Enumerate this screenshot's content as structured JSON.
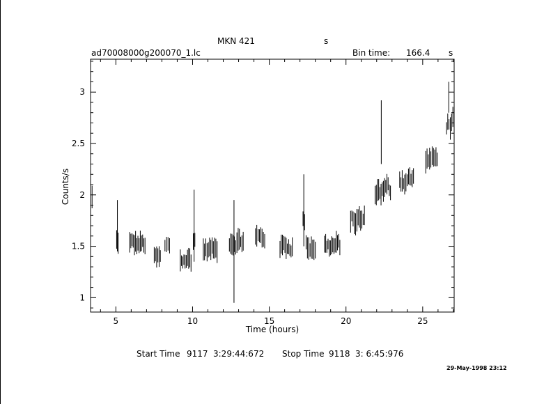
{
  "header": {
    "object": "MKN 421",
    "mid_label": "s",
    "filename": "ad70008000g200070_1.lc",
    "bin_label": "Bin time:",
    "bin_value": "166.4",
    "bin_unit": "s"
  },
  "footer": {
    "start_label": "Start Time",
    "start_day": "9117",
    "start_time": "3:29:44:672",
    "stop_label": "Stop Time",
    "stop_day": "9118",
    "stop_time": "3: 6:45:976",
    "stamp": "29-May-1998 23:12"
  },
  "chart_data": {
    "type": "scatter",
    "xlabel": "Time (hours)",
    "ylabel": "Counts/s",
    "xlim": [
      3.35,
      27.05
    ],
    "ylim": [
      0.86,
      3.32
    ],
    "x_ticks": [
      5,
      10,
      15,
      20,
      25
    ],
    "y_ticks": [
      1,
      1.5,
      2,
      2.5,
      3
    ],
    "x_tick_labels": [
      "5",
      "10",
      "15",
      "20",
      "25"
    ],
    "y_tick_labels": [
      "1",
      "1.5",
      "2",
      "2.5",
      "3"
    ],
    "error_bars": true,
    "segments": [
      {
        "x_start": 3.35,
        "x_end": 3.45,
        "level": 1.95,
        "scatter": 0.15
      },
      {
        "x_start": 5.05,
        "x_end": 5.15,
        "level": 1.55,
        "scatter": 0.1
      },
      {
        "x_start": 5.9,
        "x_end": 6.9,
        "level": 1.52,
        "scatter": 0.1
      },
      {
        "x_start": 7.5,
        "x_end": 7.9,
        "level": 1.38,
        "scatter": 0.08
      },
      {
        "x_start": 8.2,
        "x_end": 8.5,
        "level": 1.5,
        "scatter": 0.08
      },
      {
        "x_start": 9.2,
        "x_end": 9.9,
        "level": 1.37,
        "scatter": 0.1
      },
      {
        "x_start": 10.05,
        "x_end": 10.15,
        "level": 1.55,
        "scatter": 0.1
      },
      {
        "x_start": 10.7,
        "x_end": 11.6,
        "level": 1.47,
        "scatter": 0.09
      },
      {
        "x_start": 12.4,
        "x_end": 13.3,
        "level": 1.55,
        "scatter": 0.1
      },
      {
        "x_start": 14.1,
        "x_end": 14.7,
        "level": 1.58,
        "scatter": 0.1
      },
      {
        "x_start": 15.7,
        "x_end": 16.5,
        "level": 1.5,
        "scatter": 0.09
      },
      {
        "x_start": 17.2,
        "x_end": 17.3,
        "level": 1.75,
        "scatter": 0.1
      },
      {
        "x_start": 17.4,
        "x_end": 18.0,
        "level": 1.5,
        "scatter": 0.1
      },
      {
        "x_start": 18.6,
        "x_end": 19.6,
        "level": 1.5,
        "scatter": 0.1
      },
      {
        "x_start": 20.3,
        "x_end": 21.2,
        "level": 1.75,
        "scatter": 0.12
      },
      {
        "x_start": 21.9,
        "x_end": 22.9,
        "level": 2.05,
        "scatter": 0.12
      },
      {
        "x_start": 23.5,
        "x_end": 24.4,
        "level": 2.15,
        "scatter": 0.12
      },
      {
        "x_start": 25.2,
        "x_end": 25.95,
        "level": 2.35,
        "scatter": 0.08
      },
      {
        "x_start": 26.55,
        "x_end": 27.05,
        "level": 2.7,
        "scatter": 0.13
      }
    ],
    "spikes": [
      {
        "x": 5.1,
        "lo": 1.45,
        "hi": 1.95
      },
      {
        "x": 10.1,
        "lo": 1.35,
        "hi": 2.05
      },
      {
        "x": 12.7,
        "lo": 0.95,
        "hi": 1.95
      },
      {
        "x": 17.25,
        "lo": 1.5,
        "hi": 2.2
      },
      {
        "x": 22.3,
        "lo": 2.3,
        "hi": 2.92
      },
      {
        "x": 26.7,
        "lo": 2.8,
        "hi": 3.1
      }
    ]
  }
}
